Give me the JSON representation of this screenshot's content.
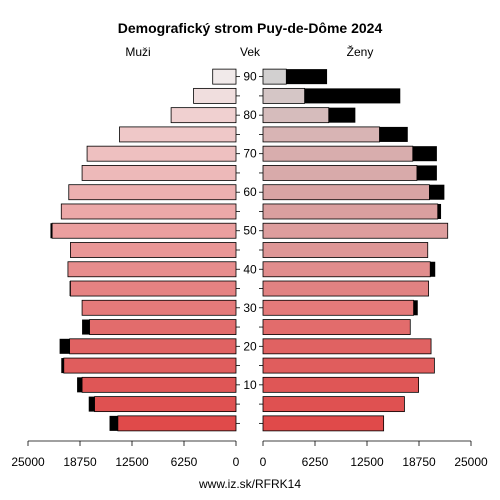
{
  "chart_data": {
    "type": "bar",
    "title": "Demografický strom Puy-de-Dôme 2024",
    "left_label": "Muži",
    "center_label": "Vek",
    "right_label": "Ženy",
    "footer": "www.iz.sk/RFRK14",
    "x_max": 25000,
    "x_ticks": [
      25000,
      18750,
      12500,
      6250,
      0
    ],
    "x_ticks_right": [
      0,
      6250,
      12500,
      18750,
      25000
    ],
    "age_ticks": [
      10,
      20,
      30,
      40,
      50,
      60,
      70,
      80,
      90
    ],
    "age_groups": [
      "0-4",
      "5-9",
      "10-14",
      "15-19",
      "20-24",
      "25-29",
      "30-34",
      "35-39",
      "40-44",
      "45-49",
      "50-54",
      "55-59",
      "60-64",
      "65-69",
      "70-74",
      "75-79",
      "80-84",
      "85-89",
      "90+"
    ],
    "series": [
      {
        "name": "Muži",
        "base": [
          14200,
          17000,
          18500,
          20700,
          20000,
          17600,
          18500,
          19900,
          20200,
          19900,
          22100,
          21000,
          20100,
          18500,
          17900,
          14000,
          7800,
          5100,
          2800
        ],
        "excess": [
          1000,
          700,
          600,
          300,
          1200,
          900,
          0,
          100,
          0,
          0,
          200,
          0,
          0,
          0,
          0,
          0,
          0,
          0,
          0
        ],
        "colors": [
          "#e04a4a",
          "#df5151",
          "#df5656",
          "#e05d5d",
          "#e06262",
          "#e26c6c",
          "#e47a7a",
          "#e58282",
          "#e78d8d",
          "#e99696",
          "#eb9f9f",
          "#eca8a8",
          "#ecb0b0",
          "#edb9b9",
          "#eec0c0",
          "#efc8c8",
          "#f0d0d0",
          "#f0dede",
          "#f1eaea"
        ]
      },
      {
        "name": "Ženy",
        "base": [
          14500,
          17000,
          18700,
          20600,
          20200,
          17700,
          18100,
          19900,
          20100,
          19800,
          22200,
          21000,
          20000,
          18500,
          18000,
          14000,
          7900,
          5000,
          2800
        ],
        "excess": [
          0,
          0,
          0,
          0,
          0,
          0,
          500,
          0,
          600,
          0,
          0,
          400,
          1800,
          2400,
          2900,
          3400,
          3200,
          11500,
          4900
        ],
        "colors": [
          "#e04a4a",
          "#df5151",
          "#df5656",
          "#e05d5d",
          "#e06262",
          "#e26c6c",
          "#e47a7a",
          "#e18282",
          "#e18d8d",
          "#de9696",
          "#dd9d9d",
          "#da9f9f",
          "#d8a4a4",
          "#d8aaaa",
          "#d8adad",
          "#d8b4b4",
          "#d6bcbc",
          "#d5c6c6",
          "#d2d0d0"
        ],
        "excess_color": "#000000"
      }
    ]
  }
}
